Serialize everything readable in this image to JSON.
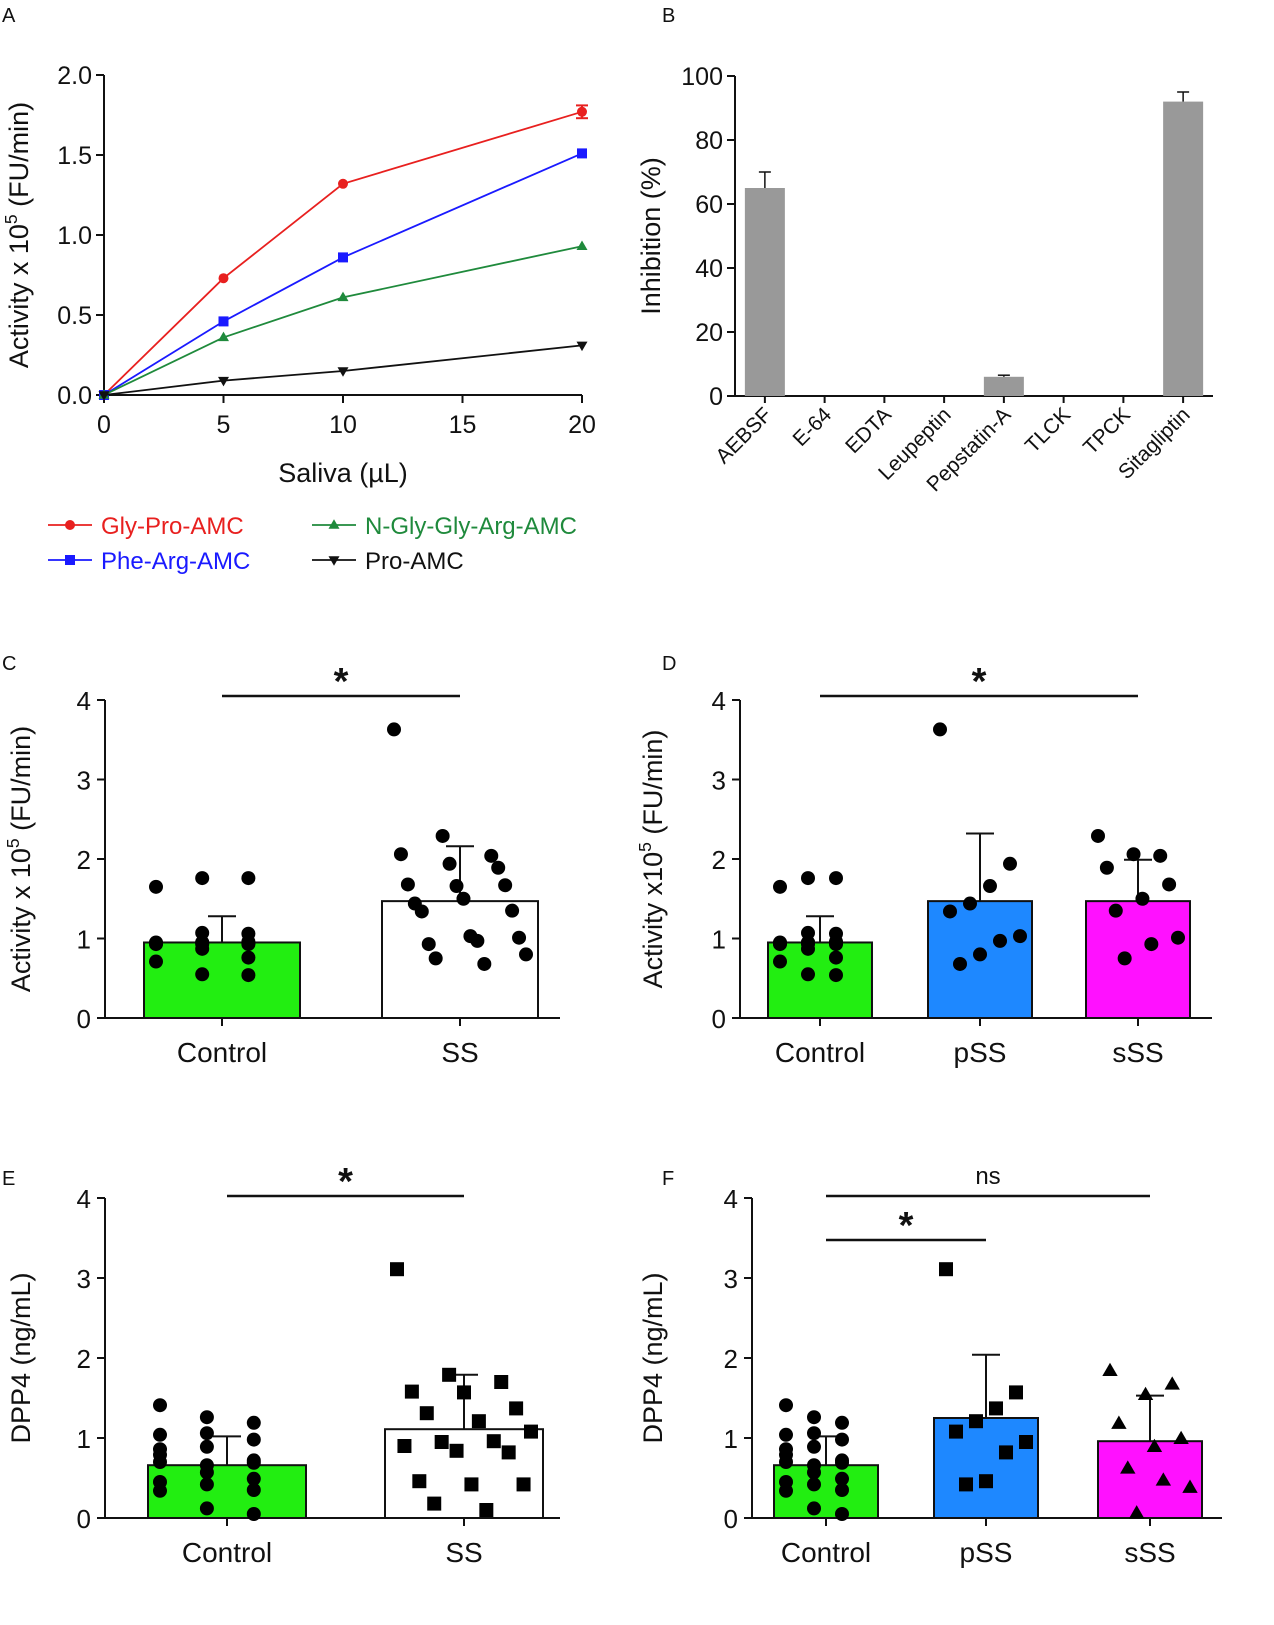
{
  "chart_data": [
    {
      "panel": "A",
      "type": "line",
      "xlabel": "Saliva (µL)",
      "ylabel": "Activity x 10",
      "ylabel_sup": "5",
      "ylabel_unit": " (FU/min)",
      "xlim": [
        0,
        20
      ],
      "ylim": [
        0,
        2.0
      ],
      "xticks": [
        0,
        5,
        10,
        15,
        20
      ],
      "xtick_labels": [
        "0",
        "5",
        "10",
        "15",
        "20"
      ],
      "yticks": [
        0,
        0.5,
        1.0,
        1.5,
        2.0
      ],
      "ytick_labels": [
        "0.0",
        "0.5",
        "1.0",
        "1.5",
        "2.0"
      ],
      "x": [
        0,
        5,
        10,
        20
      ],
      "series": [
        {
          "name": "Gly-Pro-AMC",
          "color": "#e8201f",
          "marker": "circle",
          "values": [
            0.0,
            0.73,
            1.32,
            1.77
          ],
          "errors": [
            0,
            0,
            0,
            0.04
          ]
        },
        {
          "name": "Phe-Arg-AMC",
          "color": "#1a1aff",
          "marker": "square",
          "values": [
            0.0,
            0.46,
            0.86,
            1.51
          ],
          "errors": [
            0,
            0,
            0,
            0
          ]
        },
        {
          "name": "N-Gly-Gly-Arg-AMC",
          "color": "#1f8a3c",
          "marker": "triangle-up",
          "values": [
            0.0,
            0.36,
            0.61,
            0.93
          ],
          "errors": [
            0,
            0,
            0,
            0
          ]
        },
        {
          "name": "Pro-AMC",
          "color": "#111111",
          "marker": "triangle-down",
          "values": [
            0.0,
            0.09,
            0.15,
            0.31
          ],
          "errors": [
            0,
            0,
            0,
            0
          ]
        }
      ]
    },
    {
      "panel": "B",
      "type": "bar",
      "ylabel": "Inhibition (%)",
      "ylim": [
        0,
        100
      ],
      "yticks": [
        0,
        20,
        40,
        60,
        80,
        100
      ],
      "categories": [
        "AEBSF",
        "E-64",
        "EDTA",
        "Leupeptin",
        "Pepstatin-A",
        "TLCK",
        "TPCK",
        "Sitagliptin"
      ],
      "values": [
        65,
        0,
        0,
        0,
        6,
        0,
        0,
        92
      ],
      "errors": [
        5,
        0,
        0,
        0,
        0.5,
        0,
        0,
        3
      ],
      "color": "#999999"
    },
    {
      "panel": "C",
      "type": "bar",
      "ylabel": "Activity x 10",
      "ylabel_sup": "5",
      "ylabel_unit": " (FU/min)",
      "ylim": [
        0,
        4
      ],
      "yticks": [
        0,
        1,
        2,
        3,
        4
      ],
      "categories": [
        "Control",
        "SS"
      ],
      "values": [
        0.95,
        1.47
      ],
      "errors": [
        0.33,
        0.69
      ],
      "colors": [
        "#22ee11",
        "#ffffff"
      ],
      "markers": [
        "circle",
        "circle"
      ],
      "points": [
        [
          0.94,
          0.95,
          0.94,
          0.95,
          0.93,
          0.96,
          0.94,
          0.95,
          0.93,
          0.94,
          1.76,
          1.76,
          1.65,
          1.07,
          1.06,
          0.93,
          0.87,
          0.76,
          0.71,
          0.55,
          0.54
        ],
        [
          3.63,
          2.29,
          2.04,
          2.06,
          1.94,
          1.89,
          1.68,
          1.66,
          1.67,
          1.44,
          1.5,
          1.35,
          1.34,
          1.03,
          1.01,
          0.93,
          0.97,
          0.8,
          0.75,
          0.68
        ]
      ],
      "significance": [
        {
          "label": "*",
          "from": 0,
          "to": 1
        }
      ]
    },
    {
      "panel": "D",
      "type": "bar",
      "ylabel": "Activity x10",
      "ylabel_sup": "5",
      "ylabel_unit": " (FU/min)",
      "ylim": [
        0,
        4
      ],
      "yticks": [
        0,
        1,
        2,
        3,
        4
      ],
      "categories": [
        "Control",
        "pSS",
        "sSS"
      ],
      "values": [
        0.95,
        1.47,
        1.47
      ],
      "errors": [
        0.33,
        0.85,
        0.52
      ],
      "colors": [
        "#22ee11",
        "#1e88ff",
        "#ff11ff"
      ],
      "markers": [
        "circle",
        "circle",
        "circle"
      ],
      "points": [
        [
          0.94,
          0.95,
          0.94,
          0.95,
          0.93,
          0.96,
          0.94,
          0.95,
          0.93,
          0.94,
          1.76,
          1.76,
          1.65,
          1.07,
          1.06,
          0.93,
          0.87,
          0.76,
          0.71,
          0.55,
          0.54
        ],
        [
          3.63,
          1.94,
          1.66,
          1.44,
          1.34,
          1.03,
          0.97,
          0.8,
          0.68
        ],
        [
          2.29,
          2.04,
          2.06,
          1.89,
          1.68,
          1.5,
          1.35,
          1.01,
          0.93,
          0.75
        ]
      ],
      "significance": [
        {
          "label": "*",
          "from": 0,
          "to": 2
        }
      ]
    },
    {
      "panel": "E",
      "type": "bar",
      "ylabel": "DPP4 (ng/mL)",
      "ylim": [
        0,
        4
      ],
      "yticks": [
        0,
        1,
        2,
        3,
        4
      ],
      "categories": [
        "Control",
        "SS"
      ],
      "values": [
        0.66,
        1.11
      ],
      "errors": [
        0.36,
        0.68
      ],
      "colors": [
        "#22ee11",
        "#ffffff"
      ],
      "markers": [
        "circle",
        "square"
      ],
      "points": [
        [
          1.41,
          1.26,
          1.19,
          1.04,
          1.06,
          0.98,
          0.86,
          0.89,
          0.72,
          0.79,
          0.66,
          0.69,
          0.7,
          0.57,
          0.49,
          0.45,
          0.42,
          0.35,
          0.34,
          0.12,
          0.05
        ],
        [
          3.11,
          1.79,
          1.7,
          1.58,
          1.57,
          1.37,
          1.31,
          1.21,
          1.08,
          0.95,
          0.96,
          0.9,
          0.84,
          0.82,
          0.46,
          0.42,
          0.42,
          0.18,
          0.1
        ]
      ],
      "significance": [
        {
          "label": "*",
          "from": 0,
          "to": 1
        }
      ]
    },
    {
      "panel": "F",
      "type": "bar",
      "ylabel": "DPP4 (ng/mL)",
      "ylim": [
        0,
        4
      ],
      "yticks": [
        0,
        1,
        2,
        3,
        4
      ],
      "categories": [
        "Control",
        "pSS",
        "sSS"
      ],
      "values": [
        0.66,
        1.25,
        0.96
      ],
      "errors": [
        0.36,
        0.79,
        0.57
      ],
      "colors": [
        "#22ee11",
        "#1e88ff",
        "#ff11ff"
      ],
      "markers": [
        "circle",
        "square",
        "triangle-up"
      ],
      "points": [
        [
          1.41,
          1.26,
          1.19,
          1.04,
          1.06,
          0.98,
          0.86,
          0.89,
          0.72,
          0.79,
          0.66,
          0.69,
          0.7,
          0.57,
          0.49,
          0.45,
          0.42,
          0.35,
          0.34,
          0.12,
          0.05
        ],
        [
          3.11,
          1.57,
          1.37,
          1.21,
          1.08,
          0.95,
          0.82,
          0.46,
          0.42
        ],
        [
          1.84,
          1.67,
          1.54,
          1.18,
          0.99,
          0.89,
          0.62,
          0.38,
          0.47,
          0.06
        ]
      ],
      "significance": [
        {
          "label": "*",
          "from": 0,
          "to": 1
        },
        {
          "label": "ns",
          "from": 0,
          "to": 2
        }
      ]
    }
  ]
}
